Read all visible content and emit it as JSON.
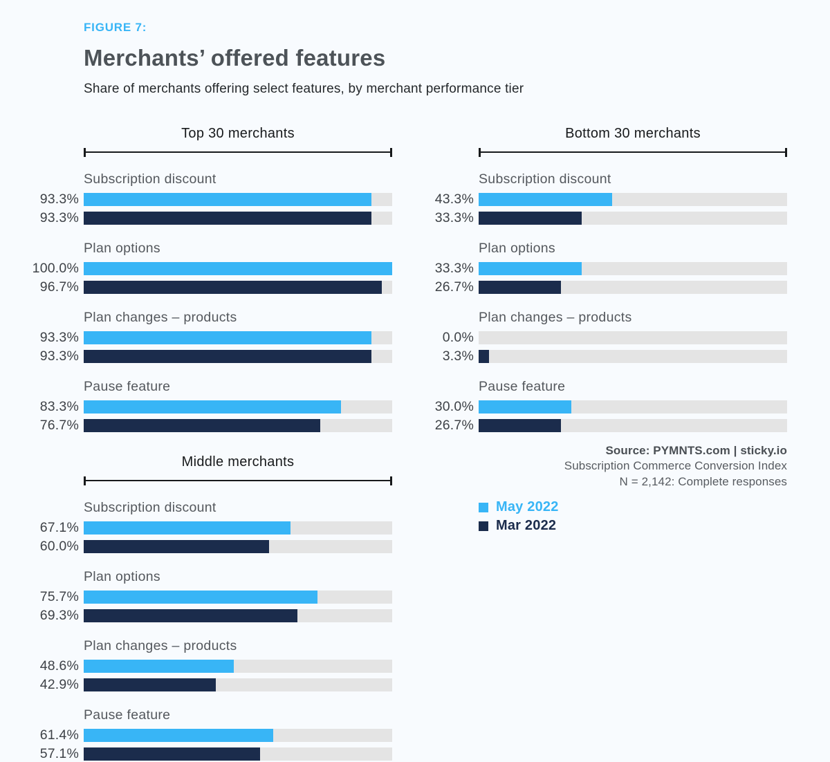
{
  "header": {
    "figure_label": "FIGURE 7:",
    "title": "Merchants’ offered features",
    "subtitle": "Share of merchants offering select features, by merchant performance tier"
  },
  "colors": {
    "may_blue": "#38b5f6",
    "mar_navy": "#1b2c4c",
    "track_gray": "#e4e4e4",
    "background": "#f8fbfe",
    "accent": "#38b5f6"
  },
  "source": {
    "line1": "Source: PYMNTS.com  |  sticky.io",
    "line2": "Subscription Commerce Conversion Index",
    "line3": "N = 2,142: Complete responses"
  },
  "legend": {
    "position": "bottom-left-of-right-column",
    "items": [
      {
        "label": "May 2022",
        "color": "#38b5f6"
      },
      {
        "label": "Mar 2022",
        "color": "#1b2c4c"
      }
    ]
  },
  "chart_data": {
    "type": "bar",
    "orientation": "horizontal",
    "unit": "%",
    "xlim": [
      0,
      100
    ],
    "grid": false,
    "series": [
      {
        "name": "May 2022",
        "color": "#38b5f6"
      },
      {
        "name": "Mar 2022",
        "color": "#1b2c4c"
      }
    ],
    "groups": [
      {
        "title": "Top 30 merchants",
        "column": "left",
        "features": [
          {
            "label": "Subscription discount",
            "values": [
              93.3,
              93.3
            ],
            "displays": [
              "93.3%",
              "93.3%"
            ]
          },
          {
            "label": "Plan options",
            "values": [
              100.0,
              96.7
            ],
            "displays": [
              "100.0%",
              "96.7%"
            ]
          },
          {
            "label": "Plan changes – products",
            "values": [
              93.3,
              93.3
            ],
            "displays": [
              "93.3%",
              "93.3%"
            ]
          },
          {
            "label": "Pause feature",
            "values": [
              83.3,
              76.7
            ],
            "displays": [
              "83.3%",
              "76.7%"
            ]
          }
        ]
      },
      {
        "title": "Bottom 30 merchants",
        "column": "right",
        "features": [
          {
            "label": "Subscription discount",
            "values": [
              43.3,
              33.3
            ],
            "displays": [
              "43.3%",
              "33.3%"
            ]
          },
          {
            "label": "Plan options",
            "values": [
              33.3,
              26.7
            ],
            "displays": [
              "33.3%",
              "26.7%"
            ]
          },
          {
            "label": "Plan changes – products",
            "values": [
              0.0,
              3.3
            ],
            "displays": [
              "0.0%",
              "3.3%"
            ]
          },
          {
            "label": "Pause feature",
            "values": [
              30.0,
              26.7
            ],
            "displays": [
              "30.0%",
              "26.7%"
            ]
          }
        ]
      },
      {
        "title": "Middle merchants",
        "column": "left",
        "features": [
          {
            "label": "Subscription discount",
            "values": [
              67.1,
              60.0
            ],
            "displays": [
              "67.1%",
              "60.0%"
            ]
          },
          {
            "label": "Plan options",
            "values": [
              75.7,
              69.3
            ],
            "displays": [
              "75.7%",
              "69.3%"
            ]
          },
          {
            "label": "Plan changes – products",
            "values": [
              48.6,
              42.9
            ],
            "displays": [
              "48.6%",
              "42.9%"
            ]
          },
          {
            "label": "Pause feature",
            "values": [
              61.4,
              57.1
            ],
            "displays": [
              "61.4%",
              "57.1%"
            ]
          }
        ]
      }
    ]
  }
}
